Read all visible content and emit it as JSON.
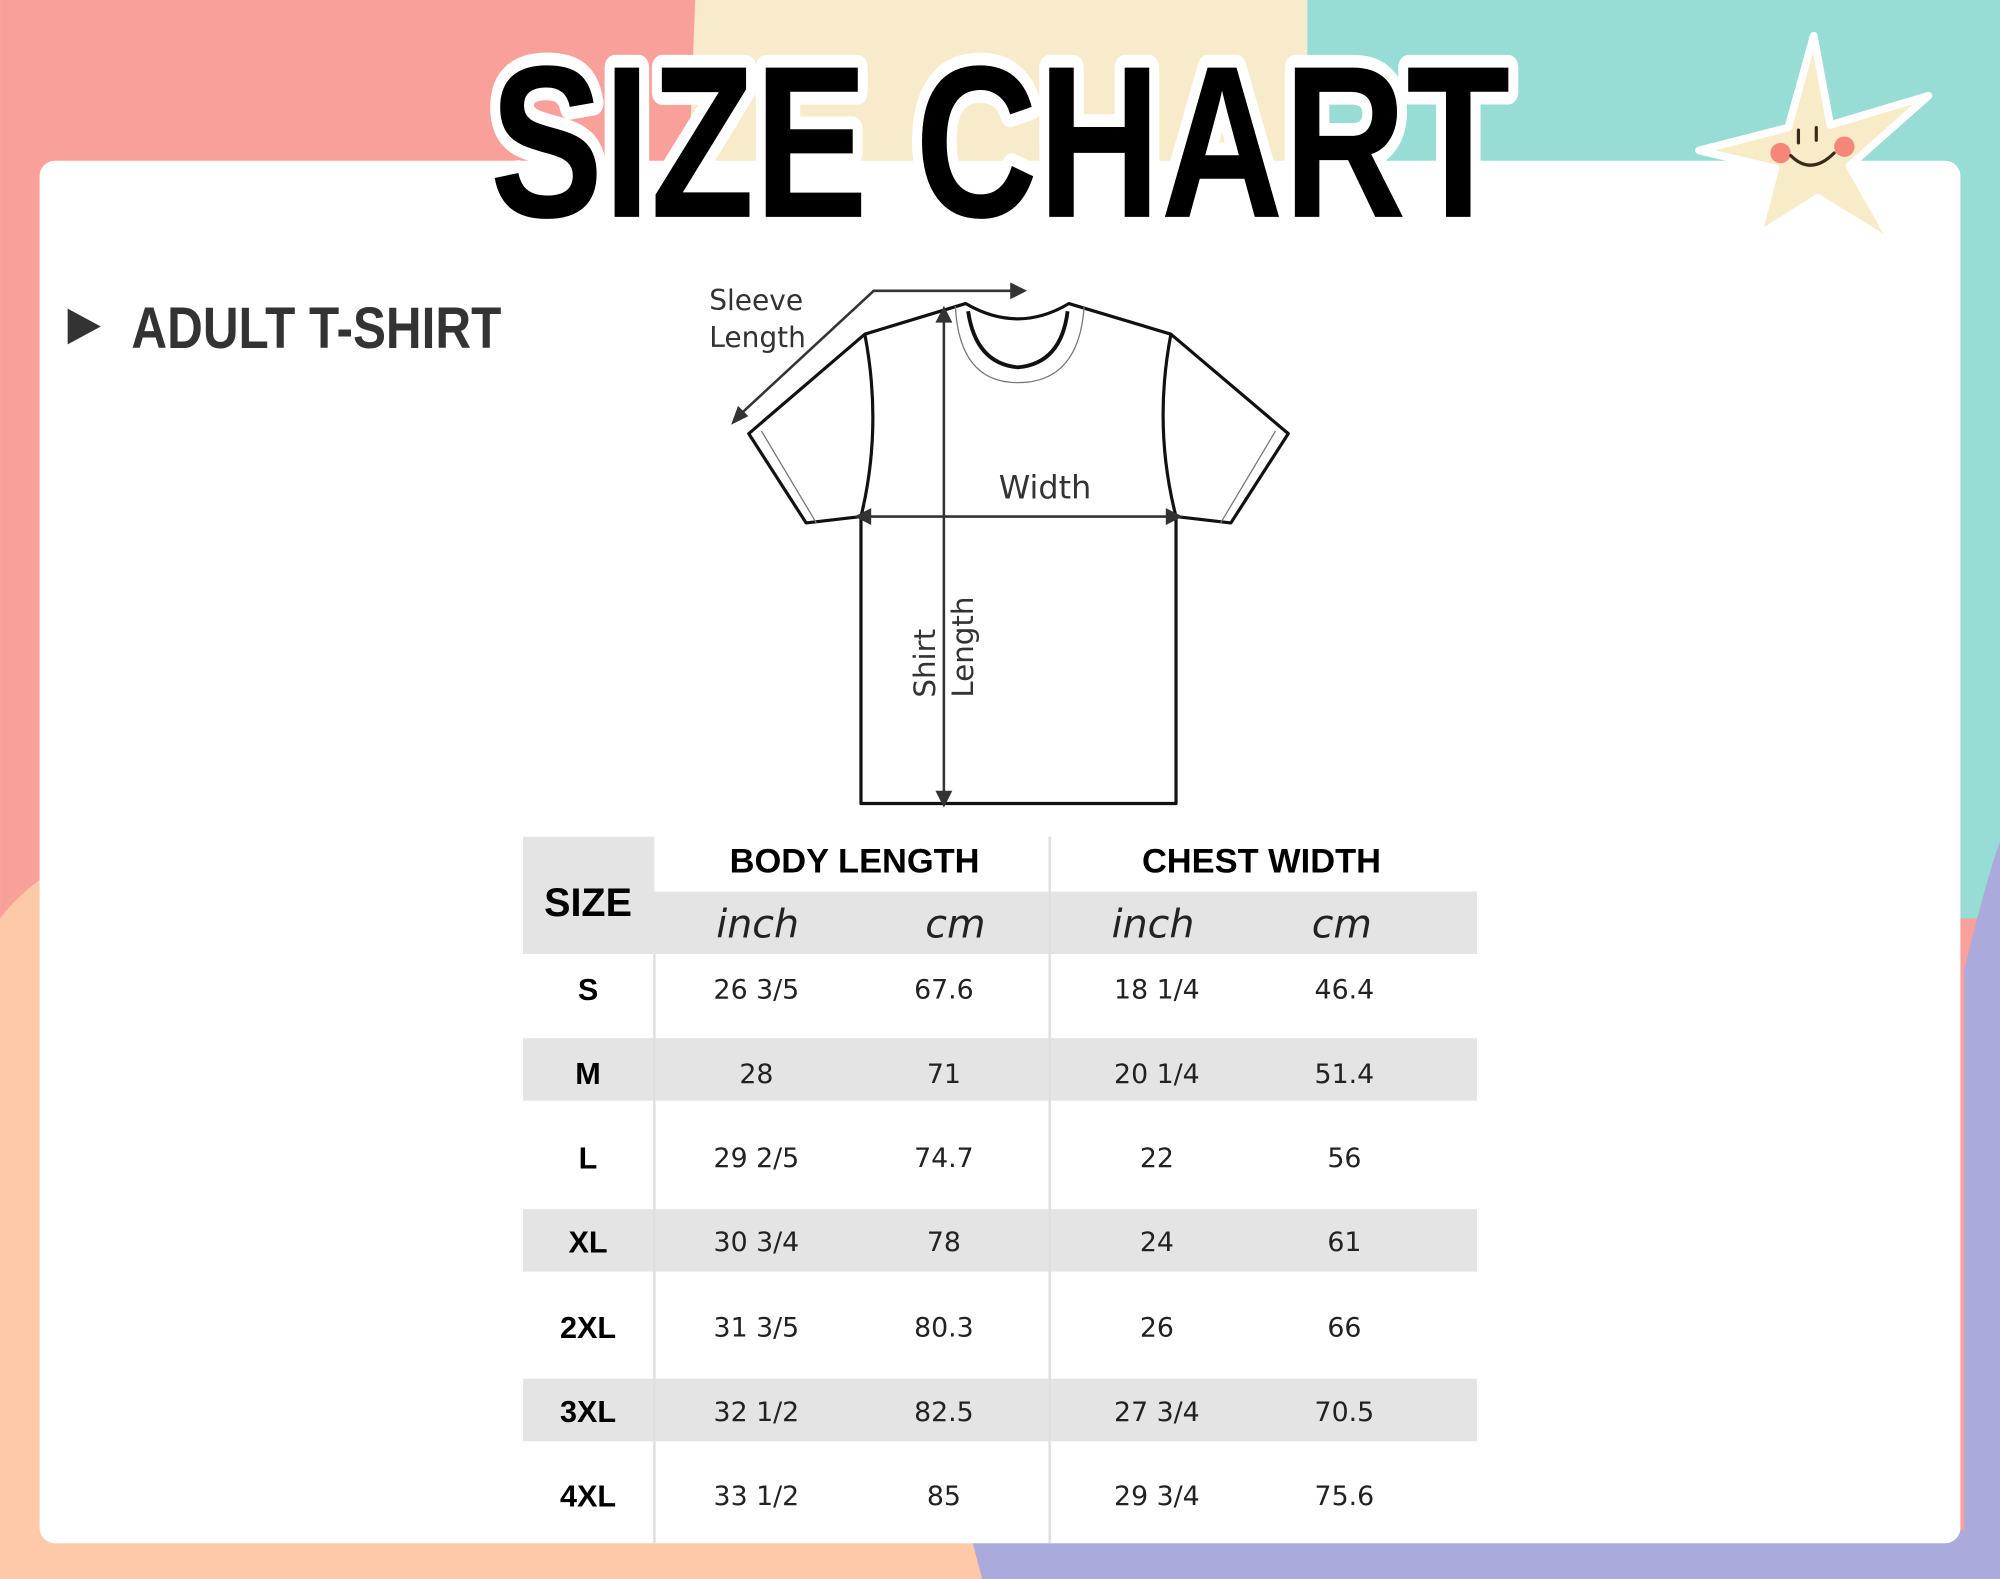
{
  "title": "SIZE CHART",
  "section": {
    "label": "ADULT T-SHIRT",
    "icon": "triangle-right-icon"
  },
  "diagram": {
    "sleeve_length_line1": "Sleeve",
    "sleeve_length_line2": "Length",
    "width_label": "Width",
    "shirt_length_line1": "Shirt",
    "shirt_length_line2": "Length"
  },
  "table": {
    "size_header": "SIZE",
    "groups": [
      "BODY LENGTH",
      "CHEST WIDTH"
    ],
    "units": [
      "inch",
      "cm",
      "inch",
      "cm"
    ],
    "rows": [
      {
        "size": "S",
        "values": [
          "26 3/5",
          "67.6",
          "18 1/4",
          "46.4"
        ]
      },
      {
        "size": "M",
        "values": [
          "28",
          "71",
          "20 1/4",
          "51.4"
        ]
      },
      {
        "size": "L",
        "values": [
          "29 2/5",
          "74.7",
          "22",
          "56"
        ]
      },
      {
        "size": "XL",
        "values": [
          "30 3/4",
          "78",
          "24",
          "61"
        ]
      },
      {
        "size": "2XL",
        "values": [
          "31 3/5",
          "80.3",
          "26",
          "66"
        ]
      },
      {
        "size": "3XL",
        "values": [
          "32 1/2",
          "82.5",
          "27 3/4",
          "70.5"
        ]
      },
      {
        "size": "4XL",
        "values": [
          "33 1/2",
          "85",
          "29 3/4",
          "75.6"
        ]
      }
    ]
  },
  "colors": {
    "pink": "#f9a09b",
    "beige": "#f7ebcb",
    "teal": "#97dcd5",
    "peach": "#fdc9a8",
    "lavender": "#abaadd",
    "band": "#e4e4e4",
    "star": "#f8ebc8"
  }
}
